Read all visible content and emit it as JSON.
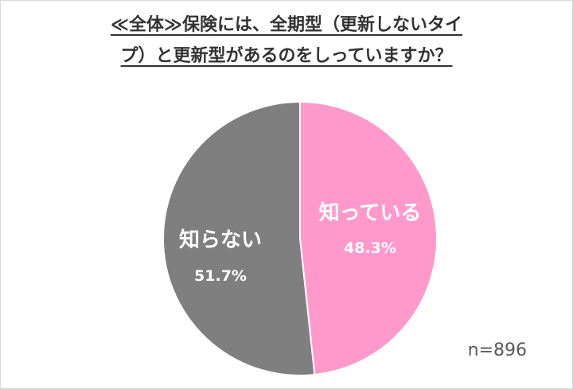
{
  "title": {
    "line1": "≪全体≫保険には、全期型（更新しないタイ",
    "line2": "プ）と更新型があるのをしっていますか？"
  },
  "chart_data": {
    "type": "pie",
    "slices": [
      {
        "label": "知っている",
        "value": 48.3,
        "value_label": "48.3%",
        "color": "#ff99cc"
      },
      {
        "label": "知らない",
        "value": 51.7,
        "value_label": "51.7%",
        "color": "#7f7f7f"
      }
    ],
    "start": "12 o'clock",
    "direction": "clockwise",
    "legend": "none",
    "sample_size_label": "n=896"
  }
}
